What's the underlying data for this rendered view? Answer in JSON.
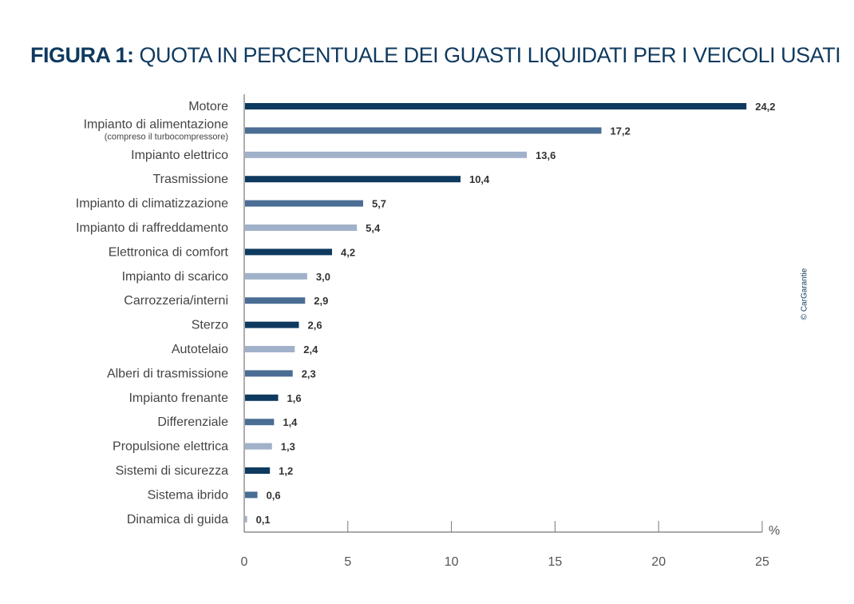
{
  "chart_data": {
    "type": "bar",
    "orientation": "horizontal",
    "title_bold": "FIGURA 1:",
    "title": "QUOTA IN PERCENTUALE DEI GUASTI LIQUIDATI PER I VEICOLI USATI",
    "xlabel": "%",
    "xlim": [
      0,
      25
    ],
    "xticks": [
      "0",
      "5",
      "10",
      "15",
      "20",
      "25"
    ],
    "categories": [
      "Motore",
      "Impianto di alimentazione",
      "Impianto elettrico",
      "Trasmissione",
      "Impianto di climatizzazione",
      "Impianto di raffreddamento",
      "Elettronica di comfort",
      "Impianto di scarico",
      "Carrozzeria/interni",
      "Sterzo",
      "Autotelaio",
      "Alberi di trasmissione",
      "Impianto frenante",
      "Differenziale",
      "Propulsione elettrica",
      "Sistemi di sicurezza",
      "Sistema ibrido",
      "Dinamica di guida"
    ],
    "subtitles": {
      "1": "(compreso il turbocompressore)"
    },
    "values": [
      24.2,
      17.2,
      13.6,
      10.4,
      5.7,
      5.4,
      4.2,
      3.0,
      2.9,
      2.6,
      2.4,
      2.3,
      1.6,
      1.4,
      1.3,
      1.2,
      0.6,
      0.1
    ],
    "labels": [
      "24,2",
      "17,2",
      "13,6",
      "10,4",
      "5,7",
      "5,4",
      "4,2",
      "3,0",
      "2,9",
      "2,6",
      "2,4",
      "2,3",
      "1,6",
      "1,4",
      "1,3",
      "1,2",
      "0,6",
      "0,1"
    ],
    "color_keys": [
      0,
      1,
      2,
      0,
      1,
      2,
      0,
      2,
      1,
      0,
      2,
      1,
      0,
      1,
      2,
      0,
      1,
      2
    ],
    "colors": [
      "#0f3a5f",
      "#4a6d94",
      "#a0b1c9"
    ]
  },
  "credit": "© CarGarantie"
}
